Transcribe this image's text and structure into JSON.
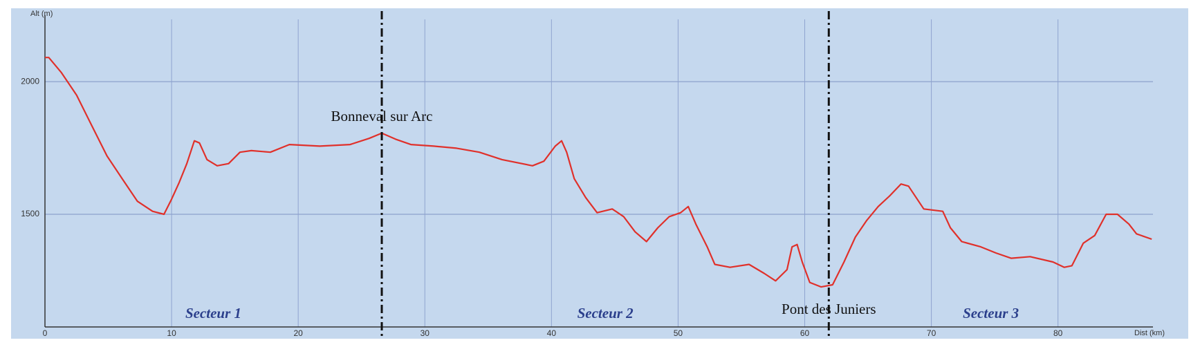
{
  "chart_data": {
    "type": "line",
    "y_label": "Alt (m)",
    "x_label": "Dist (km)",
    "x": [
      0,
      0.3,
      1.3,
      2.5,
      3.7,
      4.9,
      6.1,
      7.3,
      8.5,
      9.4,
      10,
      10.6,
      11.2,
      11.8,
      12.2,
      12.8,
      13.6,
      14.5,
      15.4,
      16.3,
      17.8,
      19.3,
      21.7,
      24.1,
      25.6,
      26.6,
      27.7,
      28.9,
      30.7,
      32.5,
      34.3,
      36.1,
      38.5,
      39.4,
      40.3,
      40.8,
      41.2,
      41.8,
      42.7,
      43.6,
      44.8,
      45.7,
      46.6,
      47.5,
      48.4,
      49.3,
      50.2,
      50.8,
      51.4,
      52.3,
      52.9,
      54.1,
      55.6,
      56.8,
      57.7,
      58.6,
      59,
      59.4,
      59.8,
      60.4,
      61.3,
      62.2,
      63.1,
      64,
      64.9,
      65.8,
      66.7,
      67.6,
      68.2,
      68.8,
      69.4,
      70.9,
      71.5,
      72.4,
      73.9,
      75.1,
      76.3,
      77.8,
      79.6,
      80.5,
      81.1,
      82,
      82.9,
      83.8,
      84.7,
      85.6,
      86.2,
      87.4
    ],
    "values": [
      2091,
      2091,
      2034,
      1949,
      1834,
      1720,
      1634,
      1549,
      1511,
      1500,
      1557,
      1620,
      1691,
      1777,
      1769,
      1706,
      1683,
      1691,
      1734,
      1740,
      1734,
      1763,
      1757,
      1763,
      1786,
      1806,
      1783,
      1763,
      1757,
      1749,
      1734,
      1706,
      1683,
      1700,
      1757,
      1777,
      1734,
      1634,
      1563,
      1506,
      1520,
      1491,
      1434,
      1397,
      1449,
      1491,
      1506,
      1529,
      1463,
      1377,
      1311,
      1300,
      1311,
      1277,
      1249,
      1291,
      1377,
      1386,
      1320,
      1243,
      1226,
      1234,
      1320,
      1414,
      1477,
      1529,
      1569,
      1614,
      1606,
      1563,
      1520,
      1511,
      1449,
      1397,
      1377,
      1354,
      1334,
      1340,
      1320,
      1300,
      1306,
      1391,
      1420,
      1500,
      1500,
      1463,
      1426,
      1406
    ],
    "color": "#e0302a",
    "xlim": [
      0,
      87.5
    ],
    "ylim": [
      1075,
      2235
    ],
    "xticks": [
      0,
      10,
      20,
      30,
      40,
      50,
      60,
      70,
      80
    ],
    "yticks": [
      1500,
      2000
    ],
    "grid": true,
    "markers": [
      {
        "x": 26.6,
        "label": "Bonneval sur Arc"
      },
      {
        "x": 61.9,
        "label": "Pont des Juniers"
      }
    ],
    "sectors": [
      "Secteur 1",
      "Secteur 2",
      "Secteur 3"
    ]
  }
}
